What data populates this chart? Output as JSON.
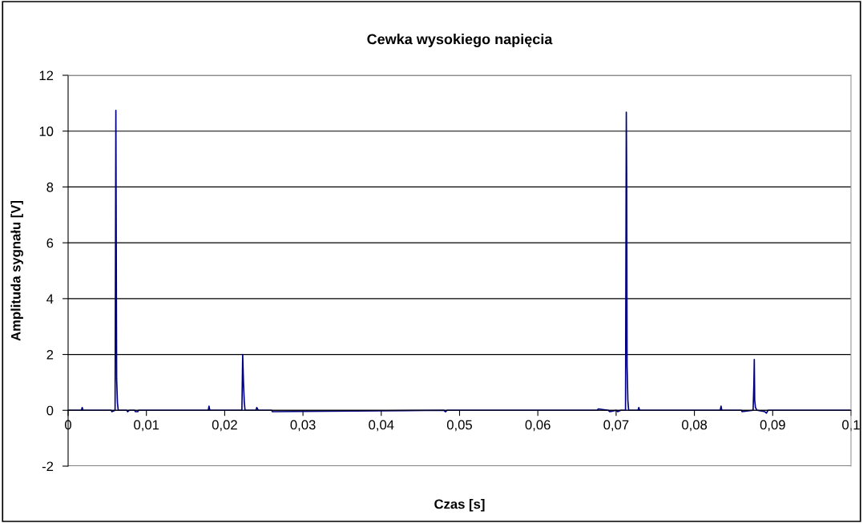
{
  "chart_data": {
    "type": "line",
    "title": "Cewka wysokiego napięcia",
    "xlabel": "Czas [s]",
    "ylabel": "Amplituda sygnału [V]",
    "series": [
      {
        "color": "#000080",
        "x": [
          0,
          0.0017,
          0.0018,
          0.0019,
          0.005,
          0.0055,
          0.0056,
          0.006,
          0.0061,
          0.00615,
          0.0062,
          0.0063,
          0.0064,
          0.0066,
          0.0075,
          0.0076,
          0.0078,
          0.0085,
          0.0086,
          0.0089,
          0.009,
          0.0179,
          0.018,
          0.0181,
          0.0222,
          0.0223,
          0.0224,
          0.0225,
          0.0226,
          0.0228,
          0.024,
          0.0241,
          0.0243,
          0.026,
          0.0261,
          0.048,
          0.0482,
          0.0484,
          0.0676,
          0.0677,
          0.069,
          0.0692,
          0.07,
          0.0702,
          0.0706,
          0.0712,
          0.0713,
          0.07135,
          0.0714,
          0.0715,
          0.0716,
          0.0718,
          0.0728,
          0.0729,
          0.073,
          0.0833,
          0.0834,
          0.0835,
          0.086,
          0.0861,
          0.0875,
          0.0876,
          0.08765,
          0.0877,
          0.0878,
          0.088,
          0.089,
          0.0892,
          0.0894,
          0.1
        ],
        "values": [
          0,
          0,
          0.1,
          0,
          0,
          0,
          -0.05,
          0,
          10.74,
          5.98,
          1.13,
          0.28,
          0,
          0,
          0,
          -0.05,
          0,
          0,
          -0.05,
          -0.05,
          0,
          0,
          0.15,
          0,
          0,
          2.0,
          1.0,
          0.31,
          0,
          0,
          0,
          0.1,
          0,
          0,
          -0.05,
          0,
          -0.05,
          0,
          0,
          0.05,
          0,
          -0.05,
          0,
          -0.05,
          0,
          0,
          10.68,
          8.3,
          1.6,
          0.36,
          0,
          0,
          0,
          0.1,
          0,
          0,
          0.15,
          0,
          0,
          -0.05,
          0,
          0.98,
          1.82,
          0.36,
          0.1,
          0,
          -0.05,
          -0.1,
          0,
          0
        ]
      }
    ],
    "xlim": [
      0,
      0.1
    ],
    "ylim": [
      -2,
      12
    ],
    "xticks": [
      {
        "value": 0,
        "label": "0"
      },
      {
        "value": 0.01,
        "label": "0,01"
      },
      {
        "value": 0.02,
        "label": "0,02"
      },
      {
        "value": 0.03,
        "label": "0,03"
      },
      {
        "value": 0.04,
        "label": "0,04"
      },
      {
        "value": 0.05,
        "label": "0,05"
      },
      {
        "value": 0.06,
        "label": "0,06"
      },
      {
        "value": 0.07,
        "label": "0,07"
      },
      {
        "value": 0.08,
        "label": "0,08"
      },
      {
        "value": 0.09,
        "label": "0,09"
      },
      {
        "value": 0.1,
        "label": "0,1"
      }
    ],
    "yticks": [
      -2,
      0,
      2,
      4,
      6,
      8,
      10,
      12
    ],
    "grid": "y",
    "legend": false,
    "marker": "none",
    "line_style": "solid"
  }
}
